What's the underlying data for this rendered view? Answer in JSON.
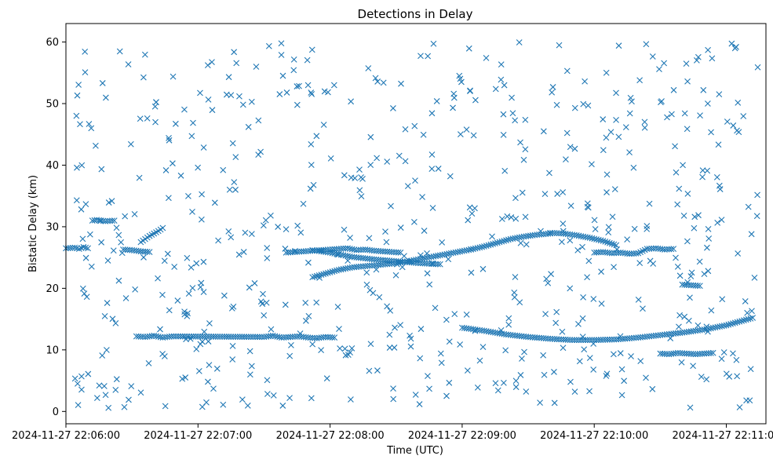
{
  "chart_data": {
    "type": "scatter",
    "title": "Detections in Delay",
    "xlabel": "Time (UTC)",
    "ylabel": "Bistatic Delay (km)",
    "marker": "x",
    "color": "#1f77b4",
    "x_ticks": [
      "2024-11-27 22:06:00",
      "2024-11-27 22:07:00",
      "2024-11-27 22:08:00",
      "2024-11-27 22:09:00",
      "2024-11-27 22:10:00",
      "2024-11-27 22:11:00"
    ],
    "xlim": [
      "2024-11-27 22:06:00",
      "2024-11-27 22:11:18"
    ],
    "y_ticks": [
      "0",
      "10",
      "20",
      "30",
      "40",
      "50",
      "60"
    ],
    "ylim": [
      -2,
      63
    ],
    "grid": false,
    "tracks": [
      {
        "x": [
          "22:06:34",
          "22:06:36",
          "22:06:38",
          "22:06:40",
          "22:06:42",
          "22:06:44"
        ],
        "y": [
          27.5,
          28.0,
          28.5,
          28.9,
          29.3,
          29.8
        ]
      },
      {
        "x": [
          "22:07:52",
          "22:07:58",
          "22:08:04",
          "22:08:10",
          "22:08:16",
          "22:08:22",
          "22:08:28",
          "22:08:34",
          "22:08:40",
          "22:08:46",
          "22:08:52",
          "22:08:58",
          "22:09:04",
          "22:09:10",
          "22:09:16",
          "22:09:22",
          "22:09:28",
          "22:09:34",
          "22:09:40"
        ],
        "y": [
          21.8,
          22.4,
          23.0,
          23.4,
          23.6,
          23.8,
          24.0,
          24.3,
          24.7,
          25.1,
          25.5,
          25.9,
          26.3,
          26.8,
          27.4,
          28.0,
          28.4,
          28.7,
          28.9
        ]
      },
      {
        "x": [
          "22:07:52",
          "22:08:00",
          "22:08:10",
          "22:08:20",
          "22:08:30",
          "22:08:40",
          "22:08:50"
        ],
        "y": [
          26.2,
          25.8,
          25.1,
          24.7,
          24.4,
          24.1,
          23.9
        ]
      },
      {
        "x": [
          "22:09:40",
          "22:09:46",
          "22:09:52",
          "22:09:58",
          "22:10:04",
          "22:10:10"
        ],
        "y": [
          29.0,
          28.9,
          28.6,
          28.2,
          27.7,
          27.0
        ]
      },
      {
        "x": [
          "22:09:00",
          "22:09:10",
          "22:09:20",
          "22:09:30",
          "22:09:40",
          "22:09:50",
          "22:10:00",
          "22:10:10",
          "22:10:20",
          "22:10:30",
          "22:10:40",
          "22:10:50",
          "22:11:00",
          "22:11:06",
          "22:11:12"
        ],
        "y": [
          13.6,
          13.1,
          12.5,
          12.1,
          11.8,
          11.6,
          11.6,
          11.7,
          12.0,
          12.4,
          12.8,
          13.3,
          14.0,
          14.6,
          15.2
        ]
      },
      {
        "x": [
          "22:06:00",
          "22:06:04",
          "22:06:06",
          "22:06:08",
          "22:06:10",
          "22:06:12",
          "22:06:14",
          "22:06:18",
          "22:06:22",
          "22:06:26",
          "22:06:30",
          "22:06:34",
          "22:06:38"
        ],
        "y": [
          26.5,
          26.6,
          26.4,
          26.7,
          26.5,
          31.0,
          31.1,
          30.9,
          31.0,
          26.3,
          26.2,
          26.0,
          25.9
        ]
      },
      {
        "x": [
          "22:06:32",
          "22:06:36",
          "22:06:40",
          "22:06:44",
          "22:06:48",
          "22:07:30",
          "22:07:34",
          "22:07:38",
          "22:07:42",
          "22:07:46",
          "22:07:50",
          "22:07:54",
          "22:07:58",
          "22:08:02"
        ],
        "y": [
          12.2,
          12.1,
          12.3,
          12.0,
          12.2,
          12.1,
          12.3,
          12.0,
          12.1,
          12.2,
          12.0,
          11.9,
          12.1,
          12.0
        ]
      },
      {
        "x": [
          "22:07:40",
          "22:07:44",
          "22:07:48",
          "22:07:52",
          "22:07:56",
          "22:08:00",
          "22:08:04",
          "22:08:08",
          "22:08:12",
          "22:08:16",
          "22:08:20",
          "22:08:24",
          "22:08:28",
          "22:08:32"
        ],
        "y": [
          25.8,
          25.9,
          26.0,
          26.1,
          26.2,
          26.3,
          26.4,
          26.5,
          26.2,
          26.3,
          26.1,
          26.0,
          25.9,
          25.8
        ]
      },
      {
        "x": [
          "22:10:00",
          "22:10:04",
          "22:10:08",
          "22:10:12",
          "22:10:16",
          "22:10:20",
          "22:10:24",
          "22:10:28",
          "22:10:32",
          "22:10:36",
          "22:10:40",
          "22:10:44",
          "22:10:48"
        ],
        "y": [
          25.8,
          25.9,
          25.7,
          25.8,
          25.6,
          25.7,
          26.4,
          26.5,
          26.3,
          26.4,
          20.6,
          20.5,
          20.4
        ]
      },
      {
        "x": [
          "22:10:30",
          "22:10:34",
          "22:10:38",
          "22:10:42",
          "22:10:46",
          "22:10:50",
          "22:10:54"
        ],
        "y": [
          9.4,
          9.3,
          9.5,
          9.4,
          9.3,
          9.4,
          9.5
        ]
      }
    ],
    "noise": {
      "count": 620,
      "x_range": [
        "22:06:00",
        "22:11:15"
      ],
      "y_range": [
        0.5,
        60
      ],
      "seed": 20241127
    }
  }
}
